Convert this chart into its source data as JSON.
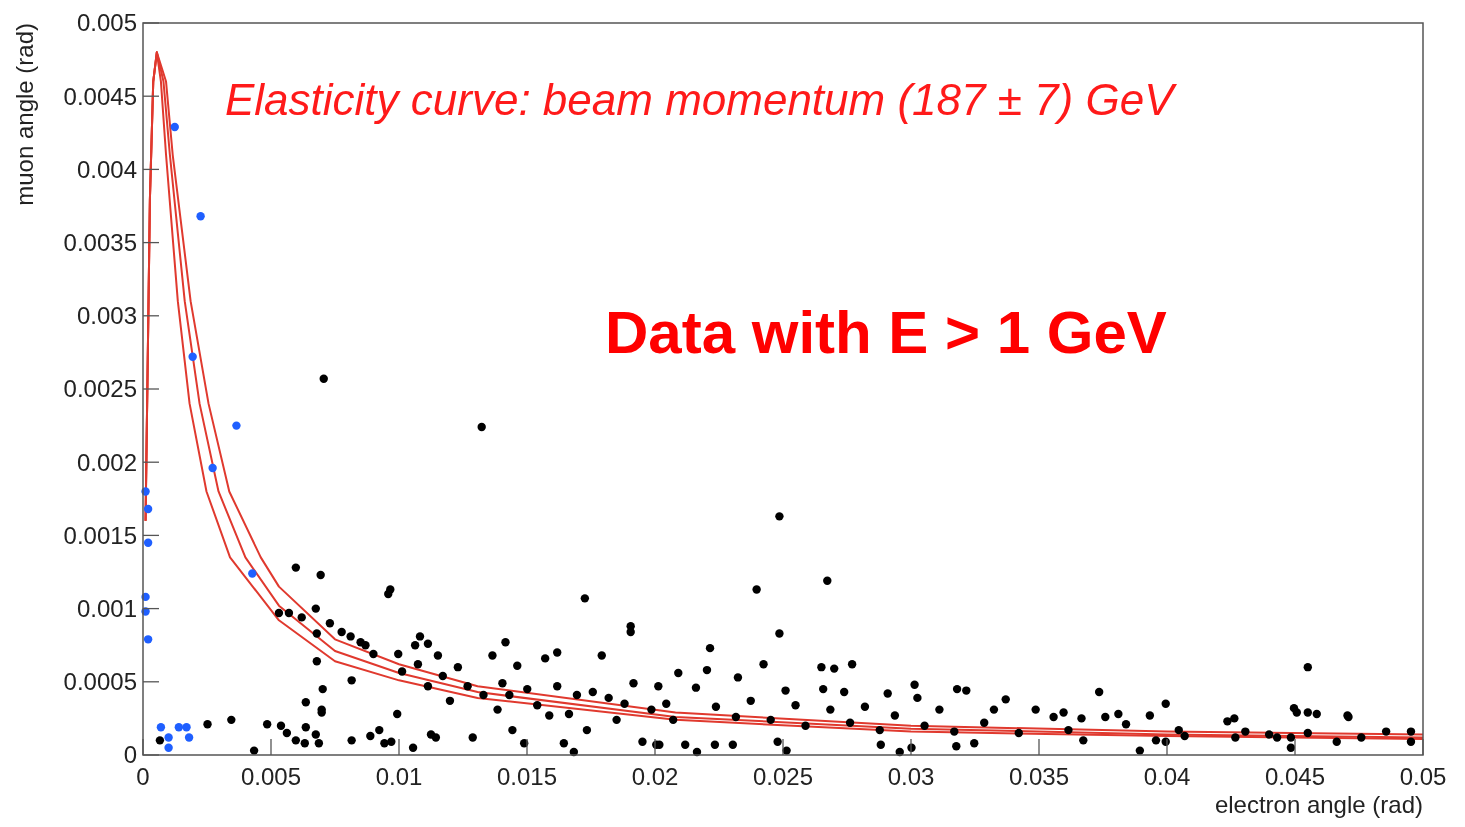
{
  "chart_data": {
    "type": "scatter",
    "xlabel": "electron angle (rad)",
    "ylabel": "muon angle (rad)",
    "annotations": [
      "Elasticity curve: beam momentum (187 ± 7) GeV",
      "Data with E > 1 GeV"
    ],
    "xlim": [
      0,
      0.05
    ],
    "ylim": [
      0,
      0.005
    ],
    "xticks": [
      0,
      0.005,
      0.01,
      0.015,
      0.02,
      0.025,
      0.03,
      0.035,
      0.04,
      0.045,
      0.05
    ],
    "yticks": [
      0,
      0.0005,
      0.001,
      0.0015,
      0.002,
      0.0025,
      0.003,
      0.0035,
      0.004,
      0.0045,
      0.005
    ],
    "series": [
      {
        "type": "line",
        "marker": "none",
        "color": "#e0392e",
        "x": [
          0.0001,
          0.00027,
          0.0004,
          0.00054,
          0.0007,
          0.0009,
          0.00136,
          0.00182,
          0.00248,
          0.0034,
          0.00531,
          0.0075,
          0.01,
          0.01307,
          0.0208,
          0.03,
          0.04,
          0.05
        ],
        "values": [
          0.0016,
          0.0038,
          0.0046,
          0.0048,
          0.0046,
          0.0041,
          0.0031,
          0.0024,
          0.0018,
          0.00135,
          0.00092,
          0.00064,
          0.00051,
          0.00039,
          0.00024,
          0.00016,
          0.00013,
          0.00011
        ]
      },
      {
        "type": "line",
        "marker": "none",
        "color": "#e0392e",
        "x": [
          0.0001,
          0.00027,
          0.0004,
          0.00054,
          0.0008,
          0.00105,
          0.00163,
          0.00221,
          0.00295,
          0.004,
          0.00531,
          0.0075,
          0.01,
          0.01307,
          0.0208,
          0.03,
          0.04,
          0.05
        ],
        "values": [
          0.0016,
          0.0038,
          0.0046,
          0.0048,
          0.0046,
          0.0041,
          0.0031,
          0.0024,
          0.0018,
          0.00135,
          0.00102,
          0.00071,
          0.00056,
          0.00043,
          0.00026,
          0.00018,
          0.00014,
          0.00012
        ]
      },
      {
        "type": "line",
        "marker": "none",
        "color": "#e0392e",
        "x": [
          0.0001,
          0.00027,
          0.0004,
          0.00054,
          0.0009,
          0.00116,
          0.00186,
          0.00256,
          0.00337,
          0.0046,
          0.00531,
          0.0075,
          0.01,
          0.01307,
          0.0208,
          0.03,
          0.04,
          0.05
        ],
        "values": [
          0.0016,
          0.0038,
          0.0046,
          0.0048,
          0.0046,
          0.0041,
          0.0031,
          0.0024,
          0.0018,
          0.00135,
          0.00115,
          0.00079,
          0.00062,
          0.00047,
          0.00029,
          0.0002,
          0.00016,
          0.00014
        ]
      },
      {
        "marker": "circle",
        "color": "#000000",
        "x": [
          0.00706,
          0.01323,
          0.02486,
          0.02673,
          0.01726,
          0.02397,
          0.00966,
          0.00958,
          0.00597,
          0.00694,
          0.01905,
          0.01905,
          0.02486,
          0.02215,
          0.0455,
          0.04507,
          0.04705,
          0.03735,
          0.00345,
          0.00252,
          0.00539,
          0.00485,
          0.00066,
          0.00434,
          0.00531,
          0.0057,
          0.00675,
          0.0062,
          0.00679,
          0.0073,
          0.00776,
          0.00811,
          0.0085,
          0.00869,
          0.009,
          0.00679,
          0.00815,
          0.00702,
          0.00698,
          0.00675,
          0.00687,
          0.00562,
          0.00632,
          0.00597,
          0.00815,
          0.00888,
          0.00943,
          0.00923,
          0.00993,
          0.01012,
          0.00997,
          0.01063,
          0.01171,
          0.01125,
          0.01074,
          0.01113,
          0.01152,
          0.01199,
          0.0123,
          0.01268,
          0.01288,
          0.0133,
          0.01365,
          0.01385,
          0.01404,
          0.01431,
          0.01443,
          0.01462,
          0.01489,
          0.01501,
          0.0154,
          0.01571,
          0.01587,
          0.01618,
          0.01644,
          0.01664,
          0.01695,
          0.01734,
          0.01757,
          0.01792,
          0.01819,
          0.0185,
          0.01881,
          0.01916,
          0.01951,
          0.01986,
          0.02013,
          0.02044,
          0.02071,
          0.02424,
          0.0265,
          0.027,
          0.0277,
          0.02203,
          0.02091,
          0.02324,
          0.03014,
          0.0318,
          0.03216,
          0.0337,
          0.03487,
          0.0216,
          0.0251,
          0.02657,
          0.02739,
          0.02909,
          0.03025,
          0.02017,
          0.02118,
          0.02164,
          0.02234,
          0.02304,
          0.02479,
          0.02514,
          0.02882,
          0.02956,
          0.03002,
          0.03177,
          0.03247,
          0.02238,
          0.02316,
          0.02374,
          0.02452,
          0.02549,
          0.02588,
          0.02685,
          0.02762,
          0.0282,
          0.02878,
          0.02937,
          0.03053,
          0.03111,
          0.03169,
          0.03286,
          0.03324,
          0.03421,
          0.03557,
          0.03615,
          0.03673,
          0.03596,
          0.03995,
          0.03933,
          0.0381,
          0.03759,
          0.0384,
          0.03666,
          0.03894,
          0.03957,
          0.03995,
          0.04046,
          0.04069,
          0.04236,
          0.04263,
          0.04267,
          0.04306,
          0.04399,
          0.0443,
          0.04484,
          0.04484,
          0.04496,
          0.0455,
          0.04585,
          0.0455,
          0.04663,
          0.04709,
          0.04759,
          0.04856,
          0.04953,
          0.04953,
          0.01618,
          0.01416,
          0.01082,
          0.01113,
          0.01055,
          0.0097,
          0.00636,
          0.00636,
          0.00698,
          0.01144,
          0.01683,
          0.02005
        ],
        "values": [
          0.00257,
          0.00224,
          0.00163,
          0.00119,
          0.00107,
          0.00113,
          0.00113,
          0.0011,
          0.00128,
          0.00123,
          0.00088,
          0.00084,
          0.00083,
          0.00073,
          0.0006,
          0.00029,
          0.00027,
          0.00043,
          0.00024,
          0.00021,
          0.0002,
          0.00021,
          0.0001,
          3e-05,
          0.00097,
          0.00097,
          0.001,
          0.00094,
          0.00083,
          0.0009,
          0.00084,
          0.00081,
          0.00077,
          0.00075,
          0.00069,
          0.00064,
          0.00051,
          0.00045,
          0.00031,
          0.00014,
          8e-05,
          0.00015,
          8e-05,
          0.0001,
          0.0001,
          0.00013,
          8e-05,
          0.00017,
          0.00028,
          0.00057,
          0.00069,
          0.00075,
          0.00054,
          0.00014,
          0.00062,
          0.00047,
          0.00068,
          0.00037,
          0.0006,
          0.00047,
          0.00012,
          0.00041,
          0.00068,
          0.00031,
          0.00049,
          0.00041,
          0.00017,
          0.00061,
          8e-05,
          0.00045,
          0.00034,
          0.00066,
          0.00027,
          0.00047,
          8e-05,
          0.00028,
          0.00041,
          0.00017,
          0.00043,
          0.00068,
          0.00039,
          0.00024,
          0.00035,
          0.00049,
          9e-05,
          0.00031,
          0.00047,
          0.00035,
          0.00024,
          0.00062,
          0.0006,
          0.00059,
          0.00062,
          0.00058,
          0.00056,
          0.00053,
          0.00048,
          0.00045,
          0.00044,
          0.00038,
          0.00031,
          0.00046,
          0.00044,
          0.00045,
          0.00043,
          0.00042,
          0.00039,
          7e-05,
          7e-05,
          2e-05,
          7e-05,
          7e-05,
          9e-05,
          3e-05,
          7e-05,
          2e-05,
          5e-05,
          6e-05,
          8e-05,
          0.00033,
          0.00026,
          0.00037,
          0.00024,
          0.00034,
          0.0002,
          0.00031,
          0.00022,
          0.00033,
          0.00017,
          0.00027,
          0.0002,
          0.00031,
          0.00016,
          0.00022,
          0.00031,
          0.00015,
          0.00026,
          0.00017,
          0.0001,
          0.00029,
          0.00035,
          0.00027,
          0.00028,
          0.00026,
          0.00021,
          0.00025,
          3e-05,
          0.0001,
          9e-05,
          0.00017,
          0.00013,
          0.00023,
          0.00025,
          0.00012,
          0.00016,
          0.00014,
          0.00012,
          0.00012,
          5e-05,
          0.00032,
          0.00029,
          0.00028,
          0.00015,
          9e-05,
          0.00026,
          0.00012,
          0.00016,
          0.00016,
          9e-05,
          0.0007,
          0.00077,
          0.00081,
          0.00076,
          5e-05,
          9e-05,
          0.00036,
          0.00019,
          0.00029,
          0.00012,
          2e-05,
          7e-05
        ]
      },
      {
        "marker": "circle",
        "color": "#1f5fff",
        "x": [
          0.00124,
          0.00225,
          0.00194,
          0.00365,
          0.00272,
          0.00427,
          0.0001,
          0.0002,
          0.0002,
          0.0001,
          0.0001,
          0.0002,
          0.0007,
          0.0014,
          0.0017,
          0.001,
          0.0018,
          0.001
        ],
        "values": [
          0.00429,
          0.00368,
          0.00272,
          0.00225,
          0.00196,
          0.00124,
          0.0018,
          0.00168,
          0.00145,
          0.00108,
          0.00098,
          0.00079,
          0.00019,
          0.00019,
          0.00019,
          0.00012,
          0.00012,
          5e-05
        ]
      }
    ]
  }
}
